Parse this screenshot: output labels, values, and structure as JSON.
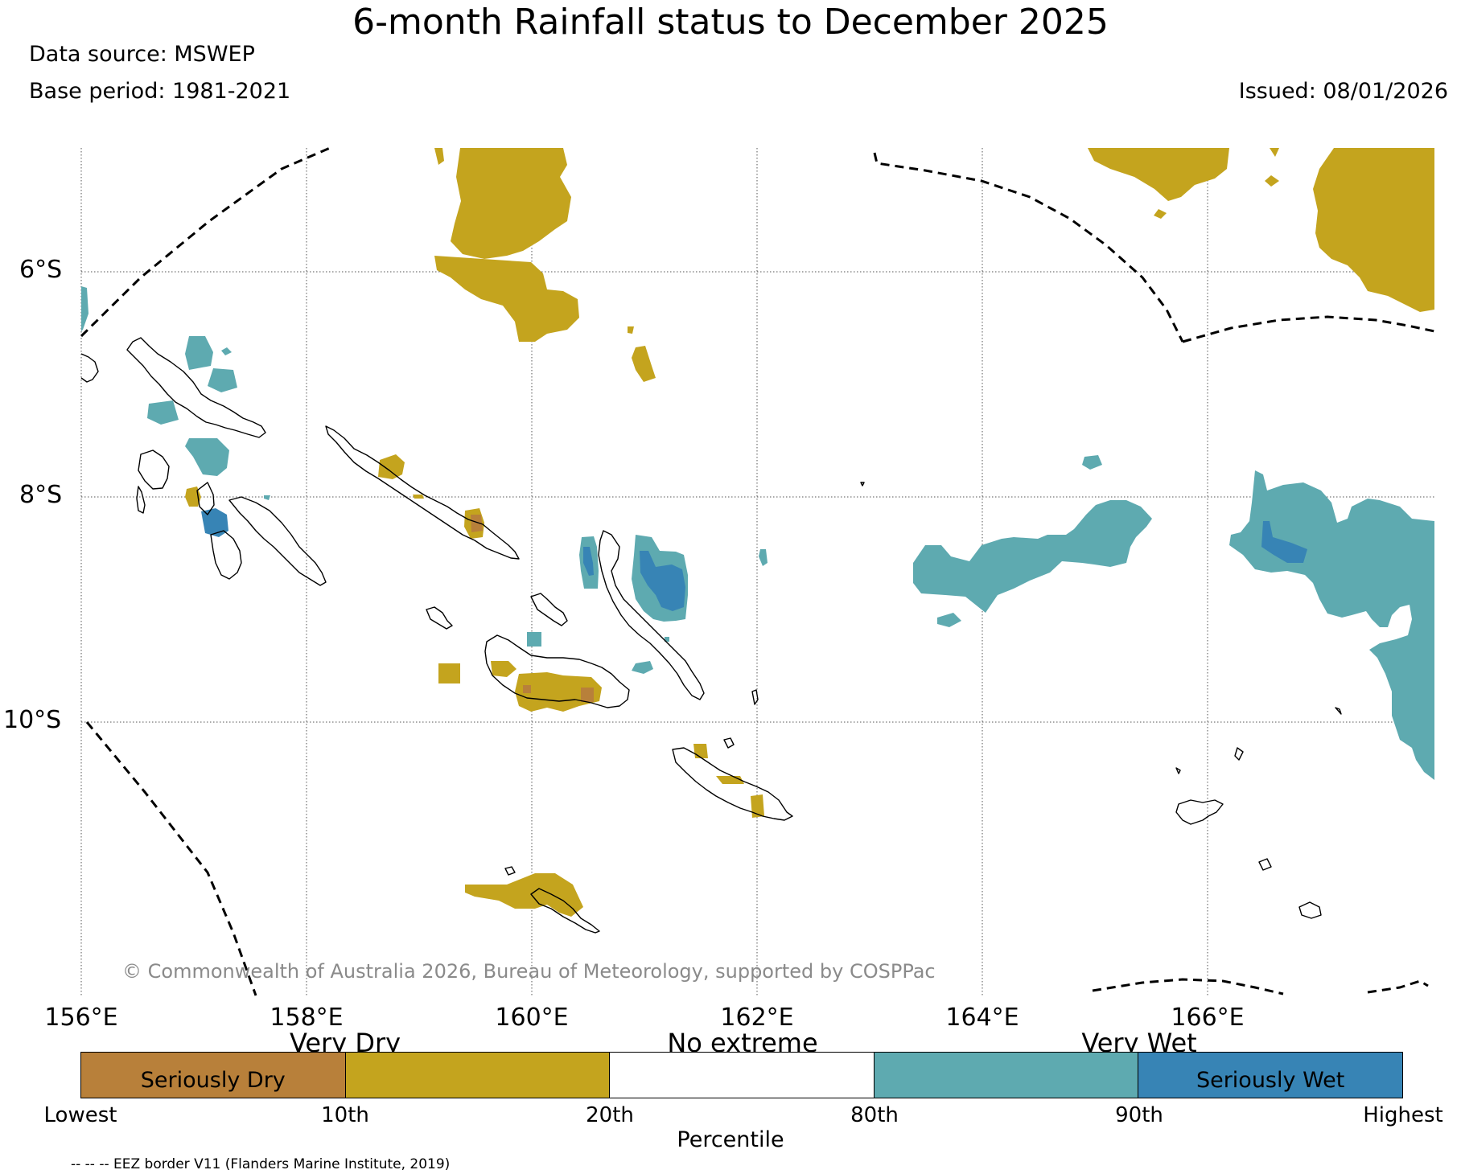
{
  "title": "6-month Rainfall status to December 2025",
  "data_source": "Data source: MSWEP",
  "base_period": "Base period: 1981-2021",
  "issued": "Issued: 08/01/2026",
  "lat_labels": [
    "6°S",
    "8°S",
    "10°S"
  ],
  "lon_labels": [
    "156°E",
    "158°E",
    "160°E",
    "162°E",
    "164°E",
    "166°E"
  ],
  "copyright": "© Commonwealth of Australia 2026, Bureau of Meteorology, supported by COSPPac",
  "legend": {
    "categories_above": [
      "Very Dry",
      "No extreme",
      "Very Wet"
    ],
    "segments": [
      {
        "label": "Seriously Dry",
        "color": "#b8803a"
      },
      {
        "label": "",
        "color": "#c4a41e"
      },
      {
        "label": "",
        "color": "#ffffff"
      },
      {
        "label": "",
        "color": "#5eaab0"
      },
      {
        "label": "Seriously Wet",
        "color": "#3784b5"
      }
    ],
    "ticks": [
      "Lowest",
      "10th",
      "20th",
      "80th",
      "90th",
      "Highest"
    ],
    "axis_label": "Percentile"
  },
  "eez_note": "-- -- -- EEZ border V11 (Flanders Marine Institute, 2019)",
  "colors": {
    "very_dry": "#c4a41e",
    "seriously_dry": "#b8803a",
    "very_wet": "#5eaab0",
    "seriously_wet": "#3784b5"
  }
}
